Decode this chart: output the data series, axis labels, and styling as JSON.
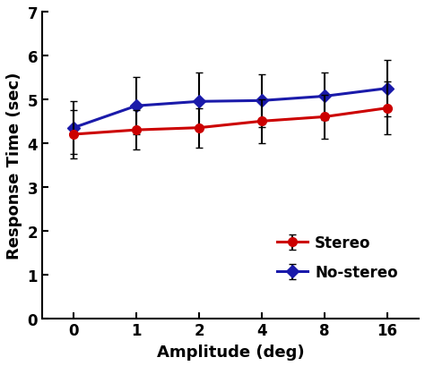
{
  "x_positions": [
    0,
    1,
    2,
    3,
    4,
    5
  ],
  "x_labels": [
    "0",
    "1",
    "2",
    "4",
    "8",
    "16"
  ],
  "stereo_y": [
    4.2,
    4.3,
    4.35,
    4.5,
    4.6,
    4.8
  ],
  "stereo_err": [
    0.55,
    0.45,
    0.45,
    0.5,
    0.5,
    0.6
  ],
  "stereo_color": "#cc0000",
  "stereo_label": "Stereo",
  "stereo_marker": "o",
  "nostereo_y": [
    4.35,
    4.85,
    4.95,
    4.97,
    5.07,
    5.25
  ],
  "nostereo_err": [
    0.6,
    0.65,
    0.65,
    0.6,
    0.55,
    0.65
  ],
  "nostereo_color": "#1a1aaa",
  "nostereo_label": "No-stereo",
  "nostereo_marker": "D",
  "ylabel": "Response Time (sec)",
  "xlabel": "Amplitude (deg)",
  "ylim": [
    0,
    7
  ],
  "yticks": [
    0,
    1,
    2,
    3,
    4,
    5,
    6,
    7
  ],
  "linewidth": 2.2,
  "markersize": 7,
  "capsize": 3,
  "elinewidth": 1.5,
  "background_color": "#ffffff",
  "font_size_labels": 13,
  "font_size_ticks": 12,
  "font_size_legend": 12
}
